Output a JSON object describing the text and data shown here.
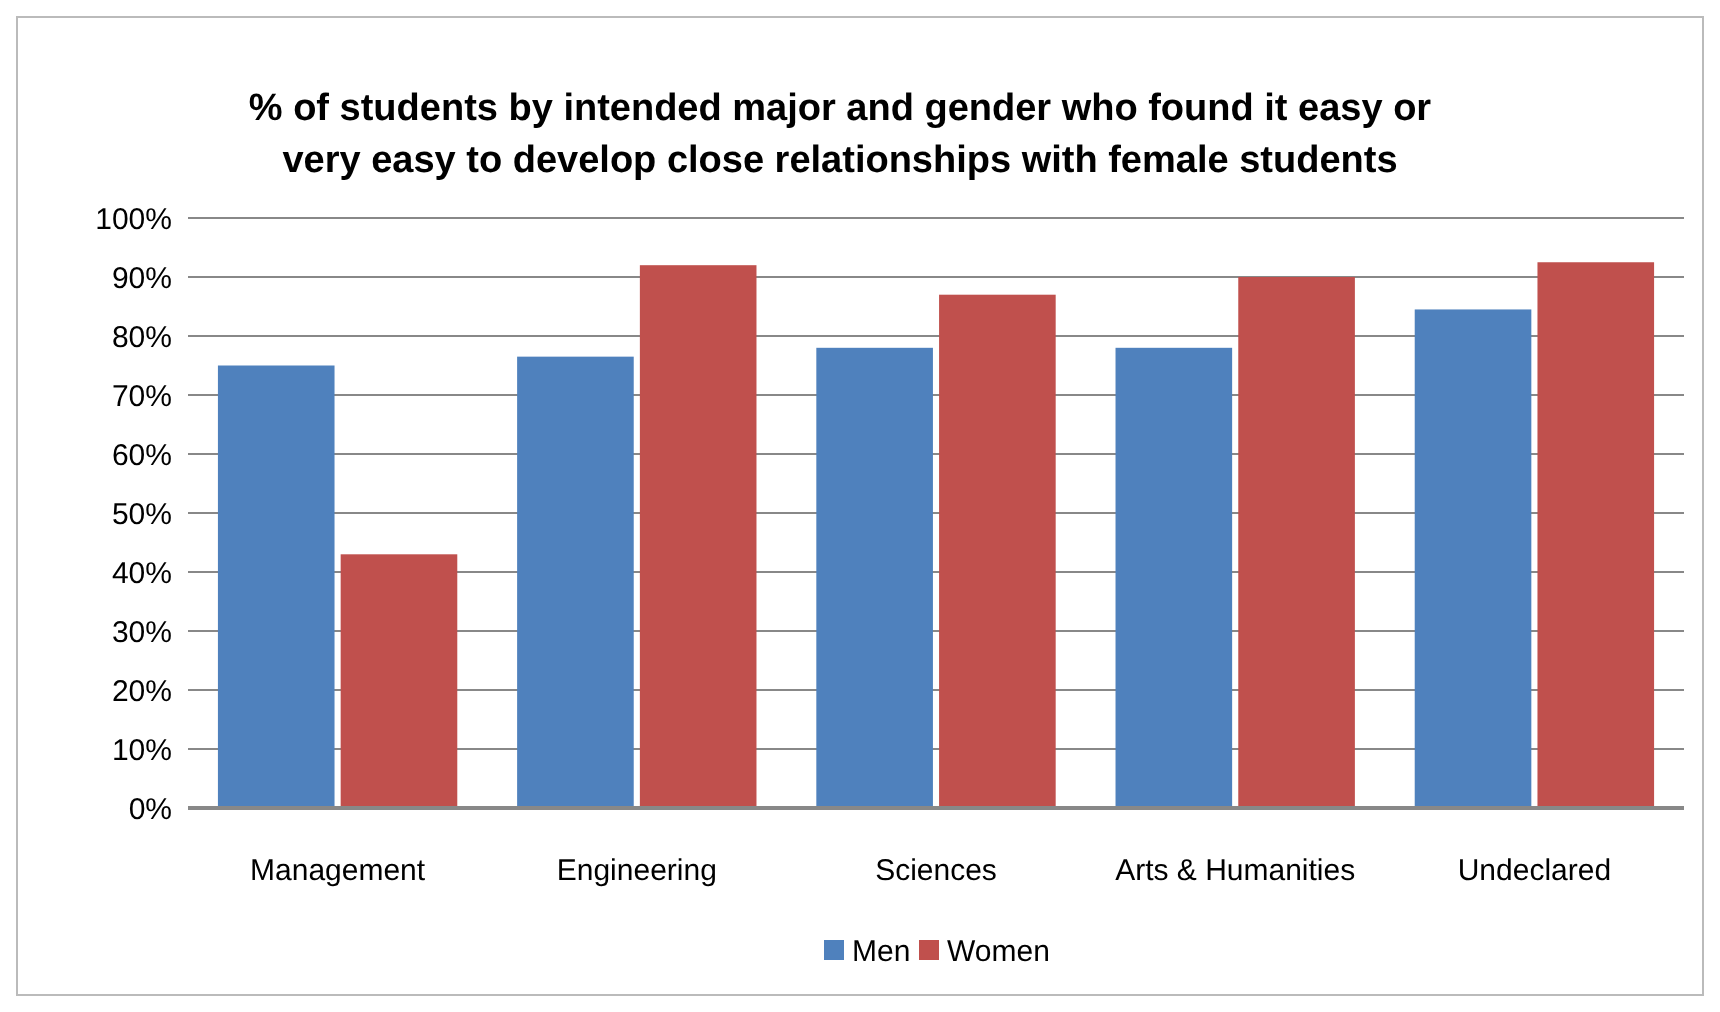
{
  "chart_data": {
    "type": "bar",
    "title": "% of students by intended major and gender who found it easy or\nvery easy to develop close relationships with female students",
    "categories": [
      "Management",
      "Engineering",
      "Sciences",
      "Arts & Humanities",
      "Undeclared"
    ],
    "series": [
      {
        "name": "Men",
        "color": "#4f81bd",
        "values": [
          75,
          76.5,
          78,
          78,
          84.5
        ]
      },
      {
        "name": "Women",
        "color": "#c0504d",
        "values": [
          43,
          92,
          87,
          90,
          92.5
        ]
      }
    ],
    "ylim": [
      0,
      100
    ],
    "yticks": [
      {
        "value": 0,
        "label": "0%"
      },
      {
        "value": 10,
        "label": "10%"
      },
      {
        "value": 20,
        "label": "20%"
      },
      {
        "value": 30,
        "label": "30%"
      },
      {
        "value": 40,
        "label": "40%"
      },
      {
        "value": 50,
        "label": "50%"
      },
      {
        "value": 60,
        "label": "60%"
      },
      {
        "value": 70,
        "label": "70%"
      },
      {
        "value": 80,
        "label": "80%"
      },
      {
        "value": 90,
        "label": "90%"
      },
      {
        "value": 100,
        "label": "100%"
      }
    ],
    "grid": "y",
    "legend": "bottom"
  }
}
